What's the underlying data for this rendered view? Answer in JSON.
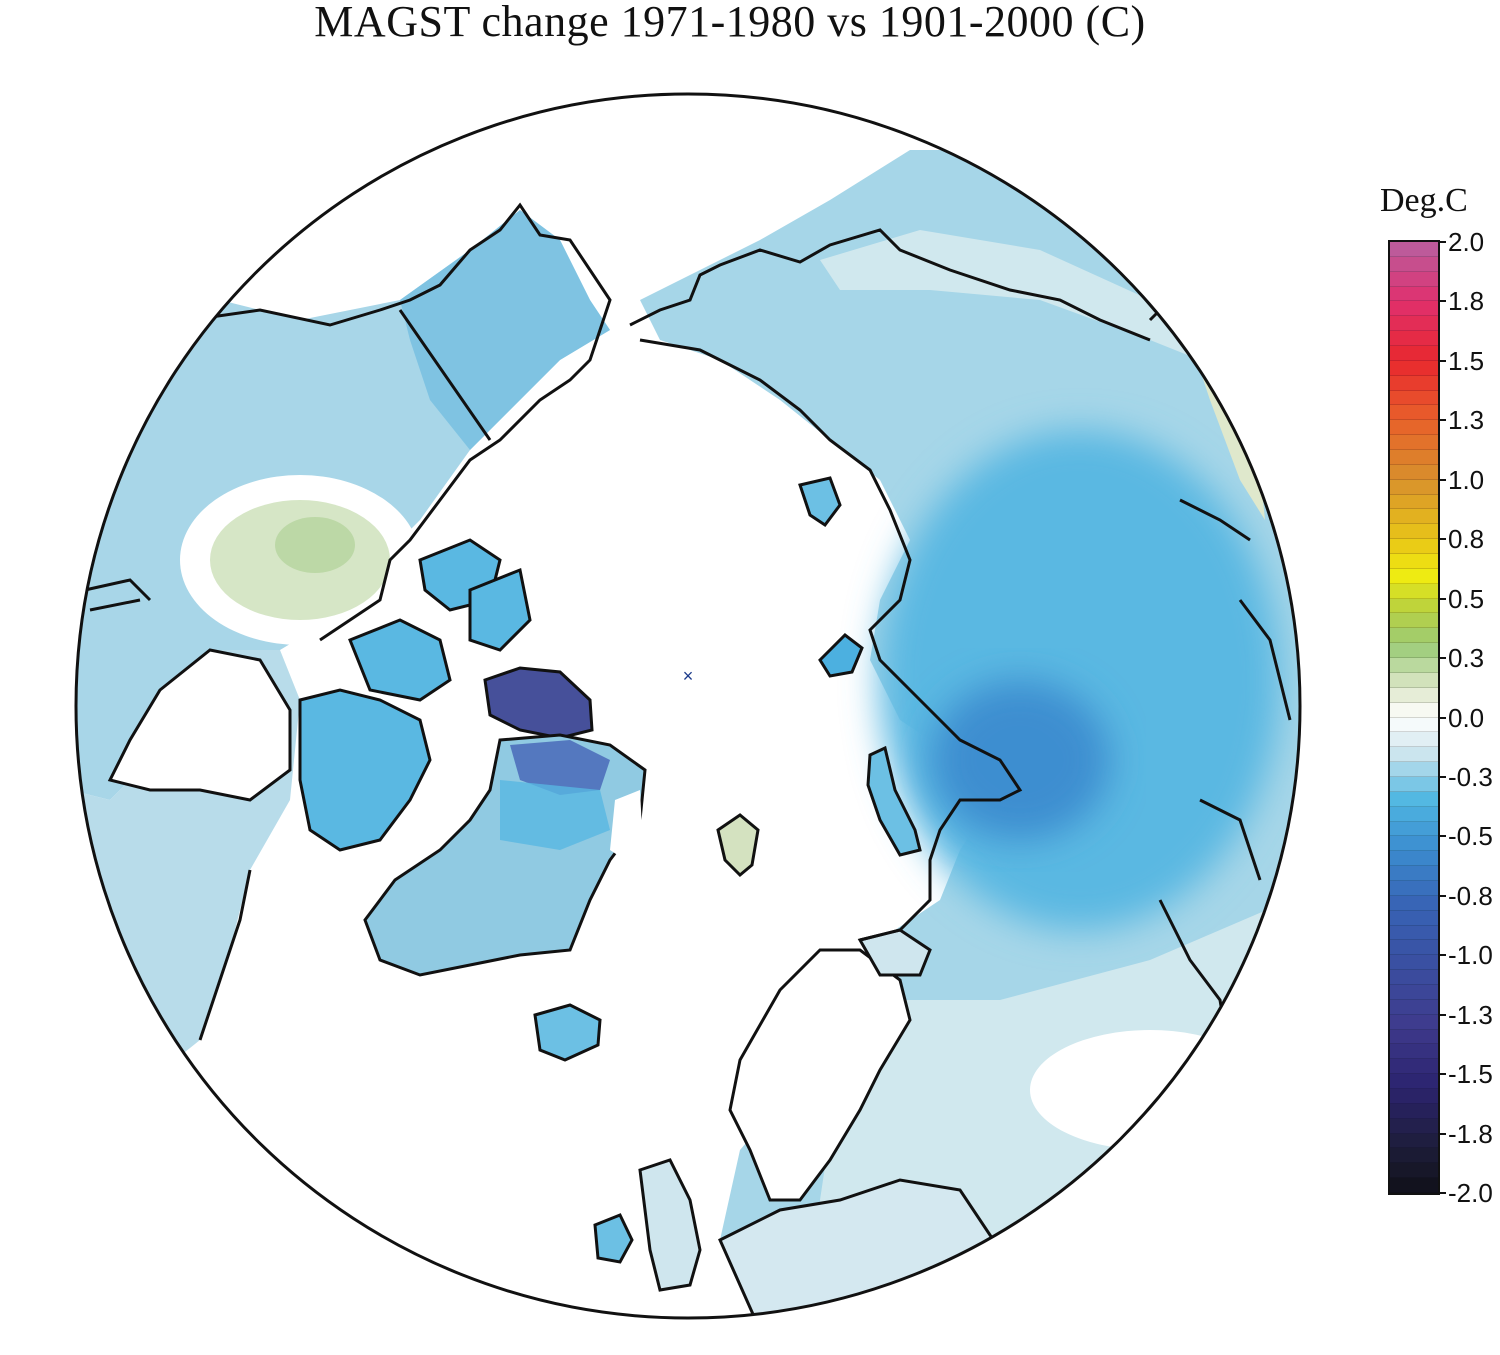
{
  "title": "MAGST change 1971-1980 vs 1901-2000 (C)",
  "legend": {
    "title": "Deg.C",
    "range": [
      -2.0,
      2.0
    ],
    "ticks": [
      "2.0",
      "1.8",
      "1.5",
      "1.3",
      "1.0",
      "0.8",
      "0.5",
      "0.3",
      "0.0",
      "-0.3",
      "-0.5",
      "-0.8",
      "-1.0",
      "-1.3",
      "-1.5",
      "-1.8",
      "-2.0"
    ],
    "stops": [
      {
        "value": 2.0,
        "color": "#b860a0"
      },
      {
        "value": 1.75,
        "color": "#e0306e"
      },
      {
        "value": 1.5,
        "color": "#e8282e"
      },
      {
        "value": 1.25,
        "color": "#e8602a"
      },
      {
        "value": 1.0,
        "color": "#d8902c"
      },
      {
        "value": 0.75,
        "color": "#e8c418"
      },
      {
        "value": 0.6,
        "color": "#f0ec10"
      },
      {
        "value": 0.45,
        "color": "#b8d040"
      },
      {
        "value": 0.3,
        "color": "#9ccc78"
      },
      {
        "value": 0.12,
        "color": "#dfe8cc"
      },
      {
        "value": 0.0,
        "color": "#ffffff"
      },
      {
        "value": -0.15,
        "color": "#cfe6ee"
      },
      {
        "value": -0.35,
        "color": "#4fb6e2"
      },
      {
        "value": -0.55,
        "color": "#3c8ed0"
      },
      {
        "value": -0.8,
        "color": "#3862b4"
      },
      {
        "value": -1.05,
        "color": "#3a4ea0"
      },
      {
        "value": -1.3,
        "color": "#3e3a8c"
      },
      {
        "value": -1.55,
        "color": "#2c2470"
      },
      {
        "value": -1.8,
        "color": "#1e1e3c"
      },
      {
        "value": -2.0,
        "color": "#101018"
      }
    ]
  },
  "map": {
    "projection": "north-polar-stereographic",
    "ocean_color": "#ffffff",
    "coastline_color": "#111111",
    "pole_marker": "×",
    "regions": [
      {
        "name": "alaska",
        "color": "#8cc8e0"
      },
      {
        "name": "canada-west",
        "color": "#a8d6e8"
      },
      {
        "name": "hudson-warm-patch",
        "color": "#d0e4c0"
      },
      {
        "name": "canadian-archipelago",
        "color": "#5ab8e2"
      },
      {
        "name": "ellesmere-cold-patch",
        "color": "#46509a"
      },
      {
        "name": "greenland",
        "color": "#90cae2"
      },
      {
        "name": "greenland-north-cold",
        "color": "#4a6ab8"
      },
      {
        "name": "iceland",
        "color": "#6cc0e4"
      },
      {
        "name": "svalbard",
        "color": "#d4e2c0"
      },
      {
        "name": "siberia-east",
        "color": "#a6d6e8"
      },
      {
        "name": "siberia-central-cold",
        "color": "#4cb0e0"
      },
      {
        "name": "taymyr-cold",
        "color": "#3c90d0"
      },
      {
        "name": "eurasia-south",
        "color": "#d0e8ee"
      },
      {
        "name": "scandinavia",
        "color": "#ffffff"
      },
      {
        "name": "europe",
        "color": "#d4e8f0"
      }
    ]
  }
}
